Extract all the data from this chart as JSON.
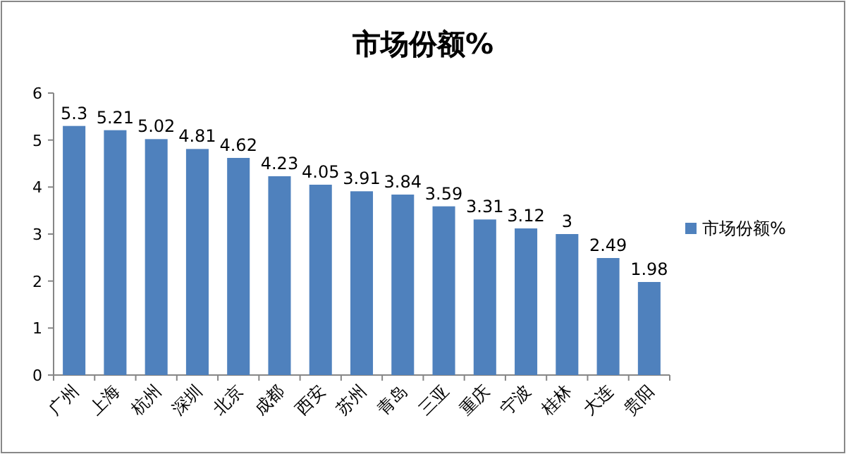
{
  "chart_data": {
    "type": "bar",
    "title": "市场份额%",
    "categories": [
      "广州",
      "上海",
      "杭州",
      "深圳",
      "北京",
      "成都",
      "西安",
      "苏州",
      "青岛",
      "三亚",
      "重庆",
      "宁波",
      "桂林",
      "大连",
      "贵阳"
    ],
    "series": [
      {
        "name": "市场份额%",
        "color": "#4f81bd",
        "values": [
          5.3,
          5.21,
          5.02,
          4.81,
          4.62,
          4.23,
          4.05,
          3.91,
          3.84,
          3.59,
          3.31,
          3.12,
          3,
          2.49,
          1.98
        ]
      }
    ],
    "ylim": [
      0,
      6
    ],
    "yticks": [
      0,
      1,
      2,
      3,
      4,
      5,
      6
    ],
    "grid": false,
    "legend": "right",
    "data_labels": true
  }
}
